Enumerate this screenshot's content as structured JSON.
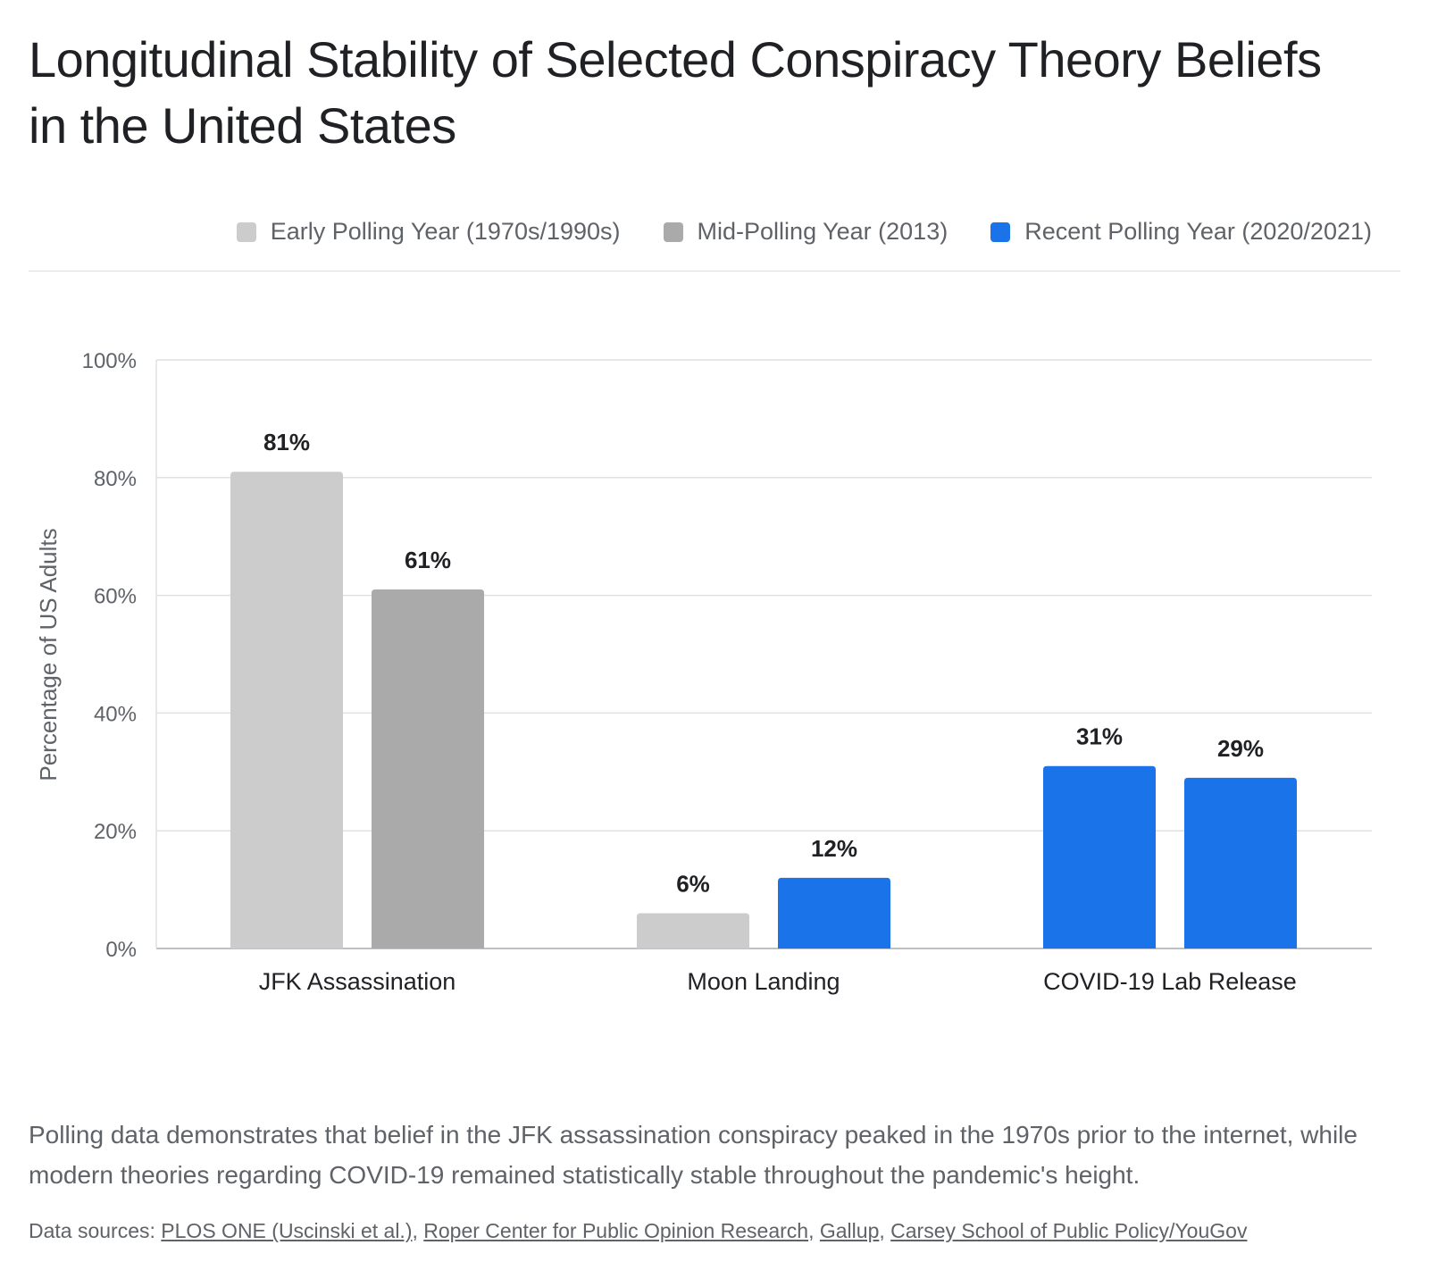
{
  "title": "Longitudinal Stability of Selected Conspiracy Theory Beliefs in the United States",
  "legend": [
    {
      "label": "Early Polling Year (1970s/1990s)",
      "color": "#cccccc"
    },
    {
      "label": "Mid-Polling Year (2013)",
      "color": "#aaaaaa"
    },
    {
      "label": "Recent Polling Year (2020/2021)",
      "color": "#1a73e8"
    }
  ],
  "chart_data": {
    "type": "bar",
    "ylabel": "Percentage of US Adults",
    "xlabel": "",
    "ylim": [
      0,
      100
    ],
    "yticks": [
      "0%",
      "20%",
      "40%",
      "60%",
      "80%",
      "100%"
    ],
    "grid": true,
    "legend_position": "top-right",
    "categories": [
      "JFK Assassination",
      "Moon Landing",
      "COVID-19 Lab Release"
    ],
    "bars": [
      {
        "category": "JFK Assassination",
        "series": "Early Polling Year (1970s/1990s)",
        "value": 81,
        "label": "81%",
        "color": "#cccccc"
      },
      {
        "category": "JFK Assassination",
        "series": "Mid-Polling Year (2013)",
        "value": 61,
        "label": "61%",
        "color": "#aaaaaa"
      },
      {
        "category": "Moon Landing",
        "series": "Early Polling Year (1970s/1990s)",
        "value": 6,
        "label": "6%",
        "color": "#cccccc"
      },
      {
        "category": "Moon Landing",
        "series": "Recent Polling Year (2020/2021)",
        "value": 12,
        "label": "12%",
        "color": "#1a73e8"
      },
      {
        "category": "COVID-19 Lab Release",
        "series": "Recent Polling Year (2020/2021)",
        "value": 31,
        "label": "31%",
        "color": "#1a73e8"
      },
      {
        "category": "COVID-19 Lab Release",
        "series": "Recent Polling Year (2020/2021)",
        "value": 29,
        "label": "29%",
        "color": "#1a73e8"
      }
    ]
  },
  "caption": "Polling data demonstrates that belief in the JFK assassination conspiracy peaked in the 1970s prior to the internet, while modern theories regarding COVID-19 remained statistically stable throughout the pandemic's height.",
  "sources": {
    "prefix": "Data sources: ",
    "links": [
      "PLOS ONE (Uscinski et al.)",
      "Roper Center for Public Opinion Research",
      "Gallup",
      "Carsey School of Public Policy/YouGov"
    ]
  }
}
